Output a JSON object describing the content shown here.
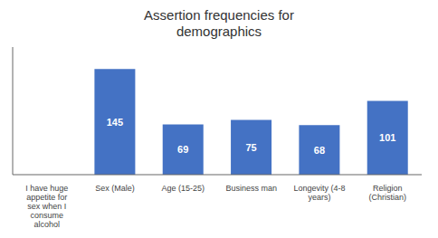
{
  "chart_data": {
    "type": "bar",
    "title": "Assertion frequencies for\ndemographics",
    "categories": [
      "I have huge\nappetite for\nsex when I\nconsume\nalcohol",
      "Sex (Male)",
      "Age (15-25)",
      "Business man",
      "Longevity (4-8\nyears)",
      "Religion\n(Christian)"
    ],
    "values": [
      0,
      145,
      69,
      75,
      68,
      101
    ],
    "value_labels": [
      null,
      "145",
      "69",
      "75",
      "68",
      "101"
    ],
    "data_labels": true,
    "color": "#4472C4",
    "ylim": [
      0,
      175
    ],
    "tick_labels": "x"
  }
}
